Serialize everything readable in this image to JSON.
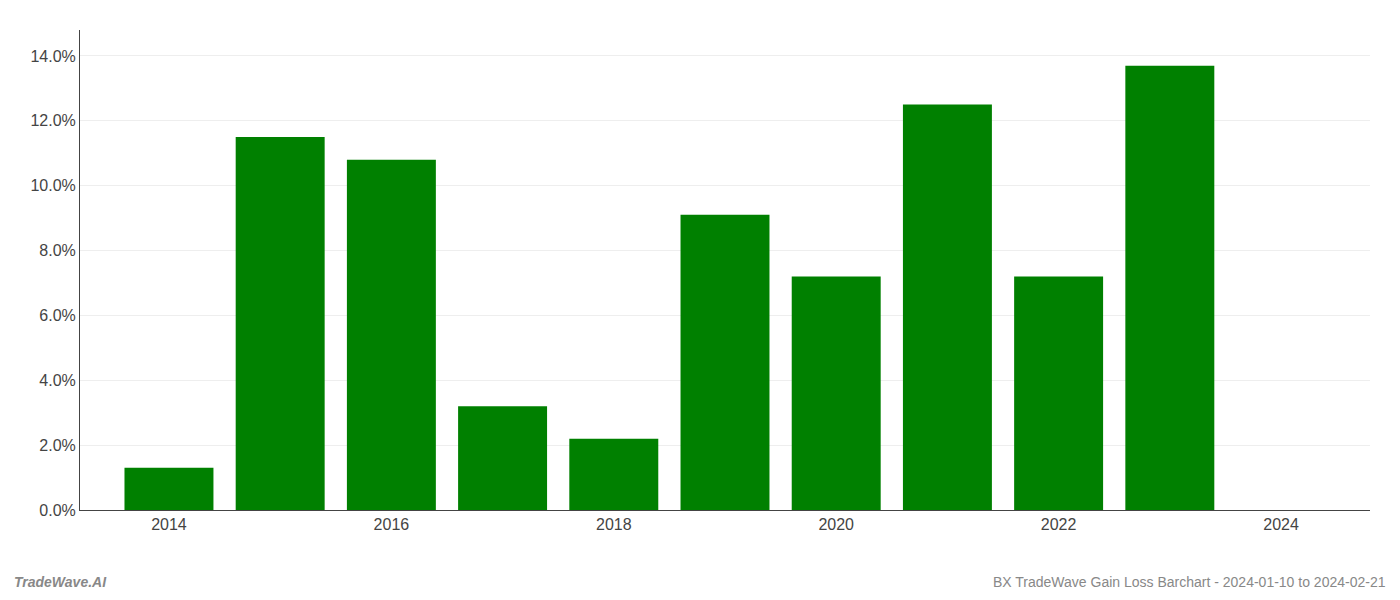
{
  "chart_data": {
    "type": "bar",
    "x": [
      2014,
      2015,
      2016,
      2017,
      2018,
      2019,
      2020,
      2021,
      2022,
      2023
    ],
    "values": [
      0.013,
      0.115,
      0.108,
      0.032,
      0.022,
      0.091,
      0.072,
      0.125,
      0.072,
      0.137
    ],
    "color": "#008000",
    "xlim": [
      2013.2,
      2024.8
    ],
    "xticks": [
      2014,
      2016,
      2018,
      2020,
      2022,
      2024
    ],
    "ylim": [
      0,
      0.148
    ],
    "yticks": [
      {
        "value": 0.0,
        "label": "0.0%"
      },
      {
        "value": 0.02,
        "label": "2.0%"
      },
      {
        "value": 0.04,
        "label": "4.0%"
      },
      {
        "value": 0.06,
        "label": "6.0%"
      },
      {
        "value": 0.08,
        "label": "8.0%"
      },
      {
        "value": 0.1,
        "label": "10.0%"
      },
      {
        "value": 0.12,
        "label": "12.0%"
      },
      {
        "value": 0.14,
        "label": "14.0%"
      }
    ],
    "grid": true,
    "annotations": [
      "TradeWave.AI",
      "BX TradeWave Gain Loss Barchart - 2024-01-10 to 2024-02-21"
    ]
  }
}
